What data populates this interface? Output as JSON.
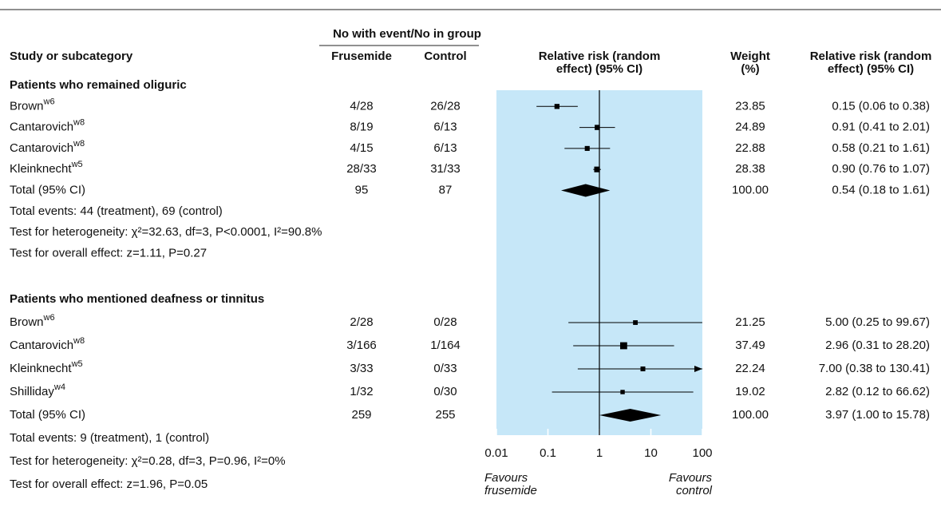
{
  "chart_data": {
    "type": "forest",
    "header": {
      "group_header": "No with event/No in group",
      "study": "Study or subcategory",
      "treatment": "Frusemide",
      "control": "Control",
      "plot": "Relative risk (random effect) (95% CI)",
      "weight": "Weight (%)",
      "ci": "Relative risk (random effect) (95% CI)"
    },
    "xlim": [
      0.01,
      100
    ],
    "xticks": [
      0.01,
      0.1,
      1,
      10,
      100
    ],
    "log_scale": true,
    "x_labels": [
      "Favours frusemide",
      "Favours control"
    ],
    "shade_color": "#c6e7f8",
    "marker_color": "#000000",
    "groups": [
      {
        "title": "Patients who remained oliguric",
        "studies": [
          {
            "name": "Brown",
            "sup": "w6",
            "treatment": "4/28",
            "control": "26/28",
            "weight": 23.85,
            "rr": 0.15,
            "lower": 0.06,
            "upper": 0.38,
            "ci_label": "0.15 (0.06 to 0.38)"
          },
          {
            "name": "Cantarovich",
            "sup": "w8",
            "treatment": "8/19",
            "control": "6/13",
            "weight": 24.89,
            "rr": 0.91,
            "lower": 0.41,
            "upper": 2.01,
            "ci_label": "0.91 (0.41 to 2.01)"
          },
          {
            "name": "Cantarovich",
            "sup": "w8",
            "treatment": "4/15",
            "control": "6/13",
            "weight": 22.88,
            "rr": 0.58,
            "lower": 0.21,
            "upper": 1.61,
            "ci_label": "0.58 (0.21 to 1.61)"
          },
          {
            "name": "Kleinknecht",
            "sup": "w5",
            "treatment": "28/33",
            "control": "31/33",
            "weight": 28.38,
            "rr": 0.9,
            "lower": 0.76,
            "upper": 1.07,
            "ci_label": "0.90 (0.76 to 1.07)"
          }
        ],
        "total": {
          "name": "Total (95% CI)",
          "treatment": 95,
          "control": 87,
          "weight": "100.00",
          "rr": 0.54,
          "lower": 0.18,
          "upper": 1.61,
          "ci_label": "0.54 (0.18 to 1.61)"
        },
        "notes": [
          "Total events: 44 (treatment), 69 (control)",
          "Test for heterogeneity: χ²=32.63, df=3, P<0.0001, I²=90.8%",
          "Test for overall effect: z=1.11, P=0.27"
        ]
      },
      {
        "title": "Patients who mentioned deafness or tinnitus",
        "studies": [
          {
            "name": "Brown",
            "sup": "w6",
            "treatment": "2/28",
            "control": "0/28",
            "weight": 21.25,
            "rr": 5.0,
            "lower": 0.25,
            "upper": 99.67,
            "ci_label": "5.00 (0.25 to 99.67)"
          },
          {
            "name": "Cantarovich",
            "sup": "w8",
            "treatment": "3/166",
            "control": "1/164",
            "weight": 37.49,
            "rr": 2.96,
            "lower": 0.31,
            "upper": 28.2,
            "ci_label": "2.96 (0.31 to 28.20)"
          },
          {
            "name": "Kleinknecht",
            "sup": "w5",
            "treatment": "3/33",
            "control": "0/33",
            "weight": 22.24,
            "rr": 7.0,
            "lower": 0.38,
            "upper": 130.41,
            "ci_label": "7.00 (0.38 to 130.41)"
          },
          {
            "name": "Shilliday",
            "sup": "w4",
            "treatment": "1/32",
            "control": "0/30",
            "weight": 19.02,
            "rr": 2.82,
            "lower": 0.12,
            "upper": 66.62,
            "ci_label": "2.82 (0.12 to 66.62)"
          }
        ],
        "total": {
          "name": "Total (95% CI)",
          "treatment": 259,
          "control": 255,
          "weight": "100.00",
          "rr": 3.97,
          "lower": 1.0,
          "upper": 15.78,
          "ci_label": "3.97 (1.00 to 15.78)"
        },
        "notes": [
          "Total events: 9 (treatment), 1 (control)",
          "Test for heterogeneity: χ²=0.28, df=3, P=0.96, I²=0%",
          "Test for overall effect: z=1.96, P=0.05"
        ]
      }
    ]
  }
}
